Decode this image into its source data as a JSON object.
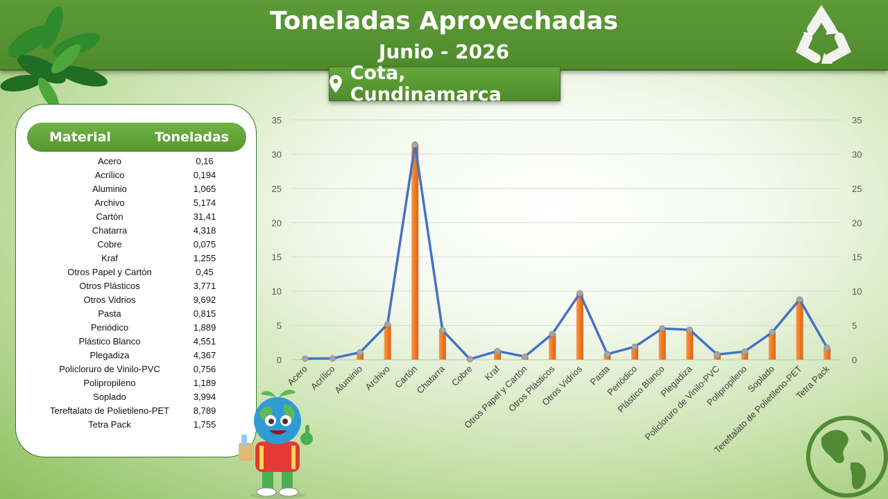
{
  "header": {
    "title": "Toneladas Aprovechadas",
    "subtitle": "Junio - 2026",
    "location": "Cota, Cundinamarca"
  },
  "table": {
    "col_material": "Material",
    "col_tons": "Toneladas",
    "rows": [
      {
        "material": "Acero",
        "tons": "0,16"
      },
      {
        "material": "Acrílico",
        "tons": "0,194"
      },
      {
        "material": "Aluminio",
        "tons": "1,065"
      },
      {
        "material": "Archivo",
        "tons": "5,174"
      },
      {
        "material": "Cartón",
        "tons": "31,41"
      },
      {
        "material": "Chatarra",
        "tons": "4,318"
      },
      {
        "material": "Cobre",
        "tons": "0,075"
      },
      {
        "material": "Kraf",
        "tons": "1,255"
      },
      {
        "material": "Otros Papel y Cartón",
        "tons": "0,45"
      },
      {
        "material": "Otros Plásticos",
        "tons": "3,771"
      },
      {
        "material": "Otros Vidrios",
        "tons": "9,692"
      },
      {
        "material": "Pasta",
        "tons": "0,815"
      },
      {
        "material": "Periódico",
        "tons": "1,889"
      },
      {
        "material": "Plástico Blanco",
        "tons": "4,551"
      },
      {
        "material": "Plegadiza",
        "tons": "4,367"
      },
      {
        "material": "Policloruro de Vinilo-PVC",
        "tons": "0,756"
      },
      {
        "material": "Polipropileno",
        "tons": "1,189"
      },
      {
        "material": "Soplado",
        "tons": "3,994"
      },
      {
        "material": "Tereftalato de Polietileno-PET",
        "tons": "8,789"
      },
      {
        "material": "Tetra Pack",
        "tons": "1,755"
      }
    ]
  },
  "chart_data": {
    "type": "bar",
    "overlay": "line",
    "categories": [
      "Acero",
      "Acrílico",
      "Aluminio",
      "Archivo",
      "Cartón",
      "Chatarra",
      "Cobre",
      "Kraf",
      "Otros Papel y Cartón",
      "Otros Plásticos",
      "Otros Vidrios",
      "Pasta",
      "Periódico",
      "Plástico Blanco",
      "Plegadiza",
      "Policloruro de Vinilo-PVC",
      "Polipropileno",
      "Soplado",
      "Tereftalato de Polietileno-PET",
      "Tetra Pack"
    ],
    "series": [
      {
        "values": [
          0.16,
          0.194,
          1.065,
          5.174,
          31.41,
          4.318,
          0.075,
          1.255,
          0.45,
          3.771,
          9.692,
          0.815,
          1.889,
          4.551,
          4.367,
          0.756,
          1.189,
          3.994,
          8.789,
          1.755
        ],
        "render": "bar",
        "color": "#f07b22"
      },
      {
        "values": [
          0.16,
          0.194,
          1.065,
          5.174,
          31.41,
          4.318,
          0.075,
          1.255,
          0.45,
          3.771,
          9.692,
          0.815,
          1.889,
          4.551,
          4.367,
          0.756,
          1.189,
          3.994,
          8.789,
          1.755
        ],
        "render": "line",
        "color": "#4472c4",
        "marker_color": "#a6a6a6"
      }
    ],
    "ylim": [
      0,
      35
    ],
    "yticks": [
      0,
      5,
      10,
      15,
      20,
      25,
      30,
      35
    ],
    "secondary_axis": true,
    "grid": true
  },
  "colors": {
    "banner": "#4f8b2c",
    "bar": "#f07b22",
    "line": "#4472c4"
  }
}
